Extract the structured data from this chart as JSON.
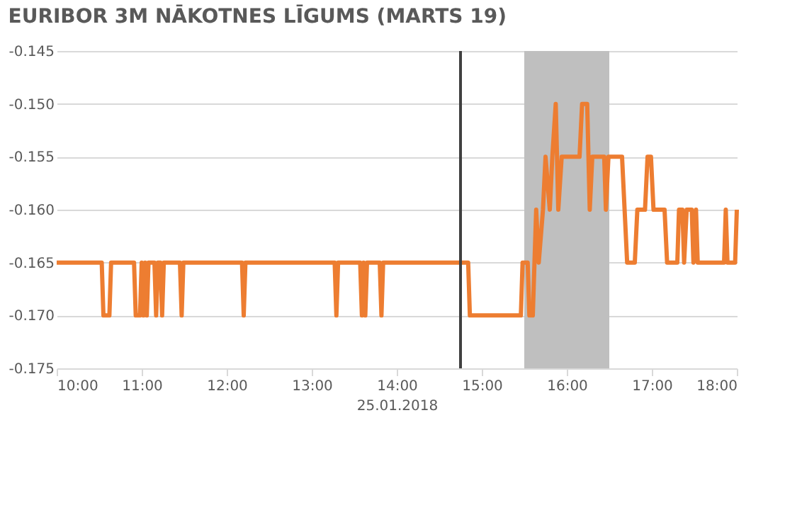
{
  "chart_data": {
    "type": "line",
    "title": "EURIBOR 3M NĀKOTNES LĪGUMS (MARTS 19)",
    "xlabel": "25.01.2018",
    "xlim": [
      10,
      18
    ],
    "xticks": [
      {
        "value": 10,
        "label": "10:00"
      },
      {
        "value": 11,
        "label": "11:00"
      },
      {
        "value": 12,
        "label": "12:00"
      },
      {
        "value": 13,
        "label": "13:00"
      },
      {
        "value": 14,
        "label": "14:00"
      },
      {
        "value": 15,
        "label": "15:00"
      },
      {
        "value": 16,
        "label": "16:00"
      },
      {
        "value": 17,
        "label": "17:00"
      },
      {
        "value": 18,
        "label": "18:00"
      }
    ],
    "ylim": [
      -0.175,
      -0.145
    ],
    "yticks": [
      {
        "value": -0.175,
        "label": "-0.175"
      },
      {
        "value": -0.17,
        "label": "-0.170"
      },
      {
        "value": -0.165,
        "label": "-0.165"
      },
      {
        "value": -0.16,
        "label": "-0.160"
      },
      {
        "value": -0.155,
        "label": "-0.155"
      },
      {
        "value": -0.15,
        "label": "-0.150"
      },
      {
        "value": -0.145,
        "label": "-0.145"
      }
    ],
    "grid": "y",
    "line_style": "solid",
    "ref_lines": [
      {
        "axis": "x",
        "value": 14.75,
        "color": "#404040"
      }
    ],
    "bands": [
      {
        "axis": "x",
        "from": 15.5,
        "to": 16.5,
        "color": "#bfbfbf"
      }
    ],
    "series": [
      {
        "color": "#ed7d31",
        "x": [
          10.0,
          10.53,
          10.55,
          10.62,
          10.64,
          10.91,
          10.93,
          10.98,
          11.0,
          11.02,
          11.04,
          11.06,
          11.08,
          11.15,
          11.17,
          11.19,
          11.22,
          11.24,
          11.26,
          11.45,
          11.47,
          11.49,
          12.18,
          12.2,
          12.22,
          13.27,
          13.29,
          13.31,
          13.57,
          13.59,
          13.61,
          13.63,
          13.65,
          13.8,
          13.82,
          13.84,
          14.84,
          14.86,
          15.46,
          15.48,
          15.54,
          15.56,
          15.6,
          15.62,
          15.64,
          15.67,
          15.72,
          15.75,
          15.8,
          15.83,
          15.87,
          15.9,
          15.94,
          16.15,
          16.18,
          16.24,
          16.27,
          16.3,
          16.44,
          16.46,
          16.49,
          16.65,
          16.68,
          16.71,
          16.8,
          16.83,
          16.92,
          16.95,
          16.99,
          17.02,
          17.15,
          17.18,
          17.3,
          17.32,
          17.36,
          17.38,
          17.41,
          17.47,
          17.49,
          17.52,
          17.54,
          17.85,
          17.87,
          17.89,
          17.98,
          18.0
        ],
        "values": [
          -0.165,
          -0.165,
          -0.17,
          -0.17,
          -0.165,
          -0.165,
          -0.17,
          -0.17,
          -0.165,
          -0.17,
          -0.165,
          -0.17,
          -0.165,
          -0.165,
          -0.17,
          -0.165,
          -0.165,
          -0.17,
          -0.165,
          -0.165,
          -0.17,
          -0.165,
          -0.165,
          -0.17,
          -0.165,
          -0.165,
          -0.17,
          -0.165,
          -0.165,
          -0.17,
          -0.165,
          -0.17,
          -0.165,
          -0.165,
          -0.17,
          -0.165,
          -0.165,
          -0.17,
          -0.17,
          -0.165,
          -0.165,
          -0.17,
          -0.17,
          -0.165,
          -0.16,
          -0.165,
          -0.16,
          -0.155,
          -0.16,
          -0.155,
          -0.15,
          -0.16,
          -0.155,
          -0.155,
          -0.15,
          -0.15,
          -0.16,
          -0.155,
          -0.155,
          -0.16,
          -0.155,
          -0.155,
          -0.16,
          -0.165,
          -0.165,
          -0.16,
          -0.16,
          -0.155,
          -0.155,
          -0.16,
          -0.16,
          -0.165,
          -0.165,
          -0.16,
          -0.16,
          -0.165,
          -0.16,
          -0.16,
          -0.165,
          -0.16,
          -0.165,
          -0.165,
          -0.16,
          -0.165,
          -0.165,
          -0.16
        ]
      }
    ]
  }
}
